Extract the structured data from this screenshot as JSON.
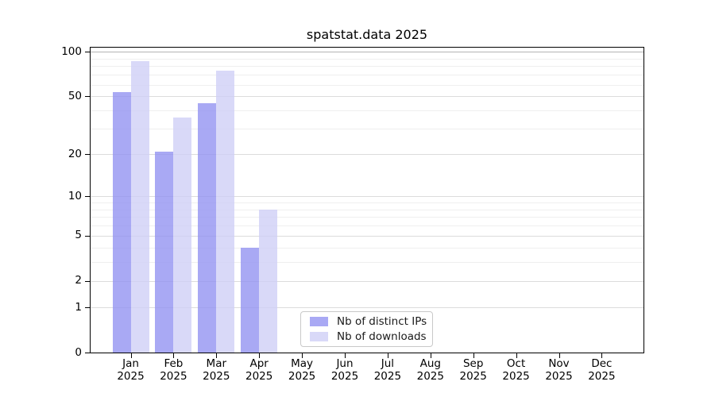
{
  "chart_data": {
    "type": "bar",
    "title": "spatstat.data 2025",
    "year_label": "2025",
    "months": [
      "Jan",
      "Feb",
      "Mar",
      "Apr",
      "May",
      "Jun",
      "Jul",
      "Aug",
      "Sep",
      "Oct",
      "Nov",
      "Dec"
    ],
    "series": [
      {
        "name": "Nb of distinct IPs",
        "color": "#a9a9f4",
        "fill": "rgba(148,148,241,0.8)",
        "values": [
          54,
          21,
          45,
          4,
          0,
          0,
          0,
          0,
          0,
          0,
          0,
          0
        ]
      },
      {
        "name": "Nb of downloads",
        "color": "#d9d9f8",
        "fill": "rgba(208,208,246,0.8)",
        "values": [
          87,
          36,
          75,
          8,
          0,
          0,
          0,
          0,
          0,
          0,
          0,
          0
        ]
      }
    ],
    "yscale": "log1p",
    "ylim": [
      0,
      100
    ],
    "yticks": [
      100,
      50,
      20,
      10,
      5,
      2,
      1,
      0
    ],
    "yticklabels": [
      "100",
      "50",
      "20",
      "10",
      "5",
      "2",
      "1",
      "0"
    ],
    "minor_gridlines": [
      90,
      80,
      70,
      60,
      40,
      30,
      9,
      8,
      7,
      6,
      4,
      3
    ],
    "grid": true,
    "legend": {
      "position": "inside-bottom-center",
      "items": [
        "Nb of distinct IPs",
        "Nb of downloads"
      ]
    }
  },
  "colors": {
    "grid_top": "#b3b3b3",
    "grid_major": "#dcdcdc",
    "grid_minor": "#efefef",
    "axis": "#000000",
    "legend_border": "#c9c9c9",
    "background": "#ffffff"
  }
}
